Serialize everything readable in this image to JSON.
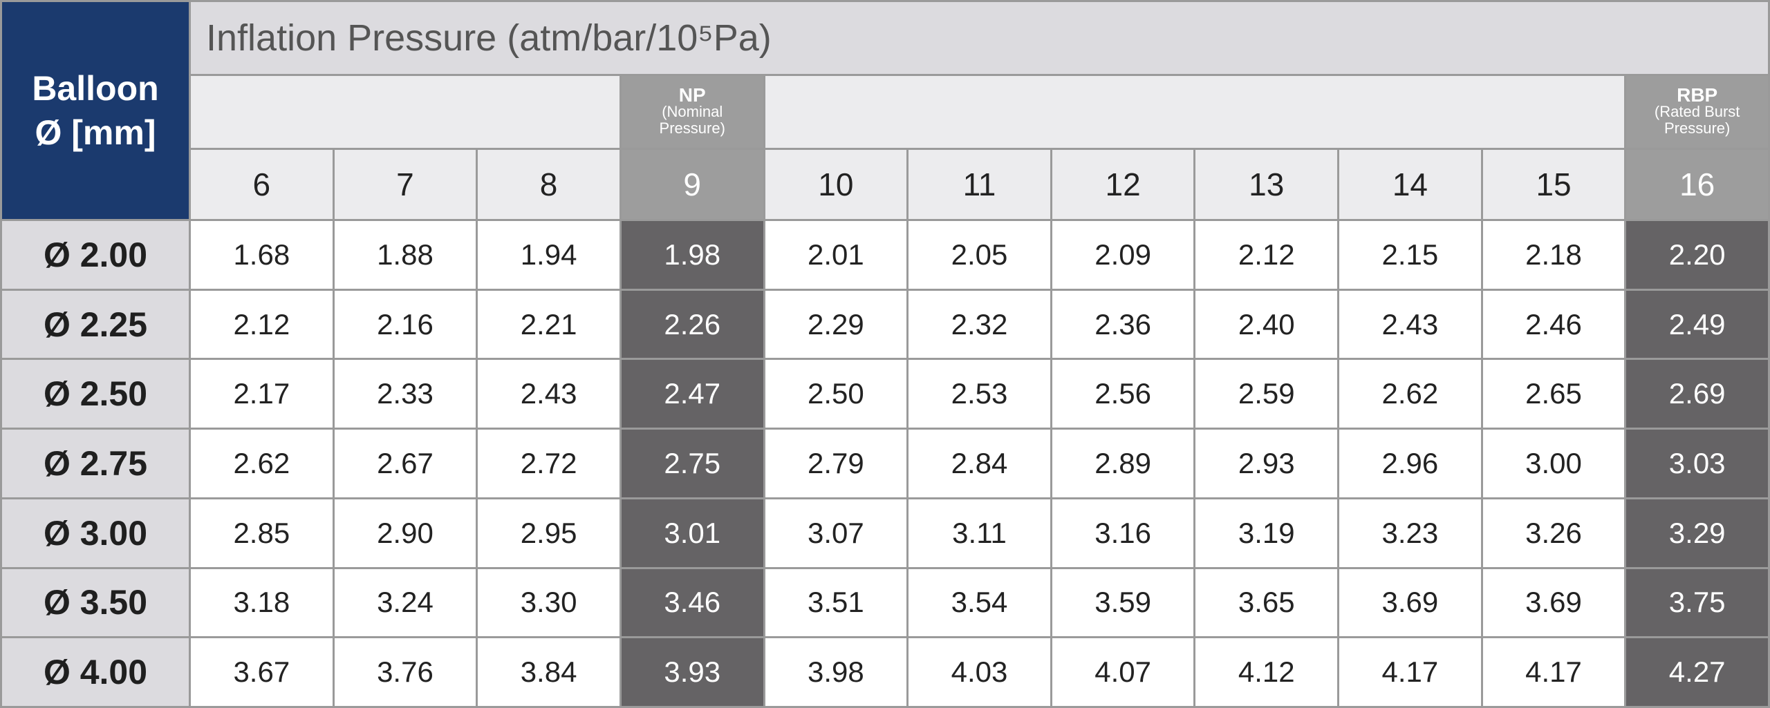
{
  "header": {
    "corner": [
      "Balloon",
      "Ø [mm]"
    ],
    "title": "Inflation Pressure (atm/bar/10⁵Pa)",
    "np": {
      "abbr": "NP",
      "desc": "(Nominal Pressure)"
    },
    "rbp": {
      "abbr": "RBP",
      "desc": "(Rated Burst Pressure)"
    },
    "pressures": [
      "6",
      "7",
      "8",
      "9",
      "10",
      "11",
      "12",
      "13",
      "14",
      "15",
      "16"
    ]
  },
  "table": {
    "rows": [
      {
        "diameter": "Ø 2.00",
        "values": [
          "1.68",
          "1.88",
          "1.94",
          "1.98",
          "2.01",
          "2.05",
          "2.09",
          "2.12",
          "2.15",
          "2.18",
          "2.20"
        ]
      },
      {
        "diameter": "Ø 2.25",
        "values": [
          "2.12",
          "2.16",
          "2.21",
          "2.26",
          "2.29",
          "2.32",
          "2.36",
          "2.40",
          "2.43",
          "2.46",
          "2.49"
        ]
      },
      {
        "diameter": "Ø 2.50",
        "values": [
          "2.17",
          "2.33",
          "2.43",
          "2.47",
          "2.50",
          "2.53",
          "2.56",
          "2.59",
          "2.62",
          "2.65",
          "2.69"
        ]
      },
      {
        "diameter": "Ø 2.75",
        "values": [
          "2.62",
          "2.67",
          "2.72",
          "2.75",
          "2.79",
          "2.84",
          "2.89",
          "2.93",
          "2.96",
          "3.00",
          "3.03"
        ]
      },
      {
        "diameter": "Ø 3.00",
        "values": [
          "2.85",
          "2.90",
          "2.95",
          "3.01",
          "3.07",
          "3.11",
          "3.16",
          "3.19",
          "3.23",
          "3.26",
          "3.29"
        ]
      },
      {
        "diameter": "Ø 3.50",
        "values": [
          "3.18",
          "3.24",
          "3.30",
          "3.46",
          "3.51",
          "3.54",
          "3.59",
          "3.65",
          "3.69",
          "3.69",
          "3.75"
        ]
      },
      {
        "diameter": "Ø 4.00",
        "values": [
          "3.67",
          "3.76",
          "3.84",
          "3.93",
          "3.98",
          "4.03",
          "4.07",
          "4.12",
          "4.17",
          "4.17",
          "4.27"
        ]
      }
    ]
  }
}
